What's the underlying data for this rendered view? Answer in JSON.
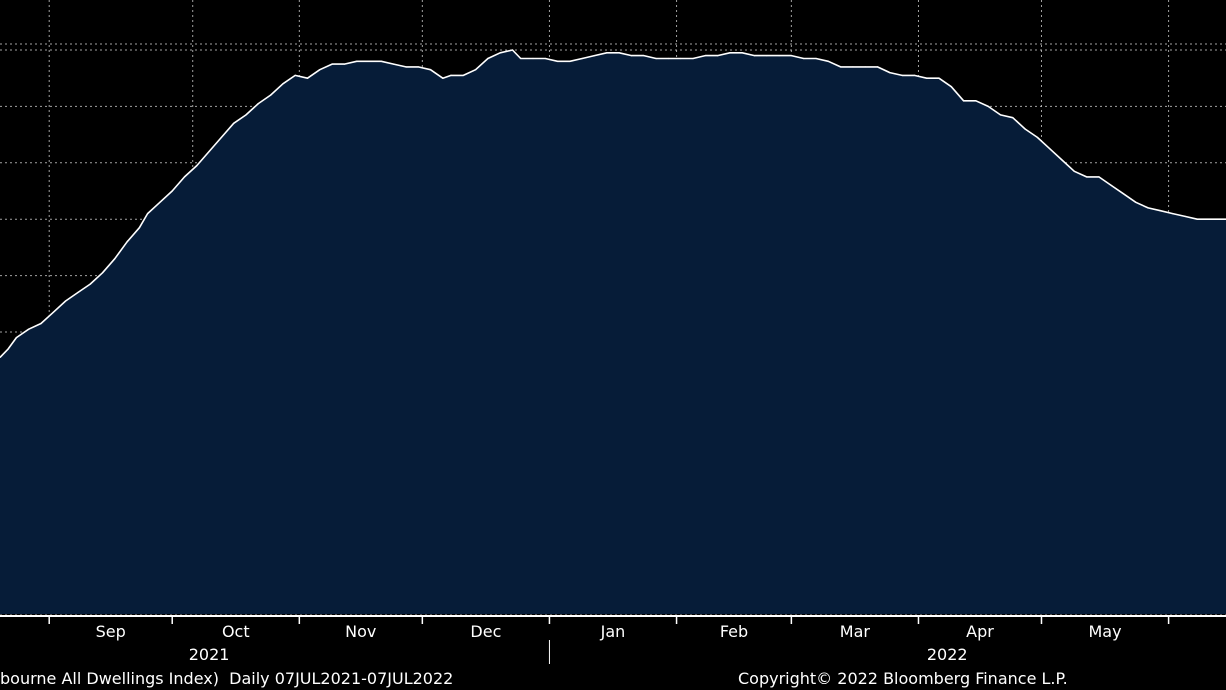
{
  "colors": {
    "background": "#000000",
    "area_fill": "#061c38",
    "line": "#ffffff",
    "grid": "#bfbfbf",
    "axis_text": "#ffffff"
  },
  "footer": {
    "left_text": "bourne All Dwellings Index)  Daily 07JUL2021-07JUL2022",
    "right_text": "Copyright© 2022 Bloomberg Finance L.P."
  },
  "chart_data": {
    "type": "area",
    "title": "",
    "xlabel": "",
    "ylabel": "",
    "grid": true,
    "y_tick_labels_shown": false,
    "year_labels": [
      "2021",
      "2022"
    ],
    "month_labels": [
      "Sep",
      "Oct",
      "Nov",
      "Dec",
      "Jan",
      "Feb",
      "Mar",
      "Apr",
      "May"
    ],
    "x_range": [
      "2021-08-20",
      "2022-06-15"
    ],
    "x_boundaries": [
      "2021-09-01",
      "2021-10-01",
      "2021-11-01",
      "2021-12-01",
      "2022-01-01",
      "2022-02-01",
      "2022-03-01",
      "2022-04-01",
      "2022-05-01",
      "2022-06-01"
    ],
    "x_grid": [
      "2021-09-01",
      "2021-10-06",
      "2021-11-01",
      "2021-12-01",
      "2022-01-01",
      "2022-02-01",
      "2022-03-01",
      "2022-04-01",
      "2022-05-01",
      "2022-06-01"
    ],
    "y_range": [
      0,
      100
    ],
    "y_grid": [
      0,
      10,
      20,
      30,
      40,
      50,
      60,
      70,
      80,
      90,
      100
    ],
    "series": [
      {
        "values": [
          [
            "2021-08-20",
            45.5
          ],
          [
            "2021-08-22",
            47.0
          ],
          [
            "2021-08-24",
            49.0
          ],
          [
            "2021-08-27",
            50.5
          ],
          [
            "2021-08-30",
            51.5
          ],
          [
            "2021-09-02",
            53.5
          ],
          [
            "2021-09-05",
            55.5
          ],
          [
            "2021-09-08",
            57.0
          ],
          [
            "2021-09-11",
            58.5
          ],
          [
            "2021-09-14",
            60.5
          ],
          [
            "2021-09-17",
            63.0
          ],
          [
            "2021-09-20",
            66.0
          ],
          [
            "2021-09-23",
            68.5
          ],
          [
            "2021-09-25",
            71.0
          ],
          [
            "2021-09-28",
            73.0
          ],
          [
            "2021-10-01",
            75.0
          ],
          [
            "2021-10-04",
            77.5
          ],
          [
            "2021-10-07",
            79.5
          ],
          [
            "2021-10-10",
            82.0
          ],
          [
            "2021-10-13",
            84.5
          ],
          [
            "2021-10-16",
            87.0
          ],
          [
            "2021-10-19",
            88.5
          ],
          [
            "2021-10-22",
            90.5
          ],
          [
            "2021-10-25",
            92.0
          ],
          [
            "2021-10-28",
            94.0
          ],
          [
            "2021-10-31",
            95.5
          ],
          [
            "2021-11-03",
            95.0
          ],
          [
            "2021-11-06",
            96.5
          ],
          [
            "2021-11-09",
            97.5
          ],
          [
            "2021-11-12",
            97.5
          ],
          [
            "2021-11-15",
            98.0
          ],
          [
            "2021-11-18",
            98.0
          ],
          [
            "2021-11-21",
            98.0
          ],
          [
            "2021-11-24",
            97.5
          ],
          [
            "2021-11-27",
            97.0
          ],
          [
            "2021-11-30",
            97.0
          ],
          [
            "2021-12-03",
            96.5
          ],
          [
            "2021-12-06",
            95.0
          ],
          [
            "2021-12-08",
            95.5
          ],
          [
            "2021-12-11",
            95.5
          ],
          [
            "2021-12-14",
            96.5
          ],
          [
            "2021-12-17",
            98.5
          ],
          [
            "2021-12-20",
            99.5
          ],
          [
            "2021-12-23",
            100.0
          ],
          [
            "2021-12-25",
            98.5
          ],
          [
            "2021-12-28",
            98.5
          ],
          [
            "2021-12-31",
            98.5
          ],
          [
            "2022-01-03",
            98.0
          ],
          [
            "2022-01-06",
            98.0
          ],
          [
            "2022-01-09",
            98.5
          ],
          [
            "2022-01-12",
            99.0
          ],
          [
            "2022-01-15",
            99.5
          ],
          [
            "2022-01-18",
            99.5
          ],
          [
            "2022-01-21",
            99.0
          ],
          [
            "2022-01-24",
            99.0
          ],
          [
            "2022-01-27",
            98.5
          ],
          [
            "2022-01-30",
            98.5
          ],
          [
            "2022-02-02",
            98.5
          ],
          [
            "2022-02-05",
            98.5
          ],
          [
            "2022-02-08",
            99.0
          ],
          [
            "2022-02-11",
            99.0
          ],
          [
            "2022-02-14",
            99.5
          ],
          [
            "2022-02-17",
            99.5
          ],
          [
            "2022-02-20",
            99.0
          ],
          [
            "2022-02-23",
            99.0
          ],
          [
            "2022-02-26",
            99.0
          ],
          [
            "2022-03-01",
            99.0
          ],
          [
            "2022-03-04",
            98.5
          ],
          [
            "2022-03-07",
            98.5
          ],
          [
            "2022-03-10",
            98.0
          ],
          [
            "2022-03-13",
            97.0
          ],
          [
            "2022-03-16",
            97.0
          ],
          [
            "2022-03-19",
            97.0
          ],
          [
            "2022-03-22",
            97.0
          ],
          [
            "2022-03-25",
            96.0
          ],
          [
            "2022-03-28",
            95.5
          ],
          [
            "2022-03-31",
            95.5
          ],
          [
            "2022-04-03",
            95.0
          ],
          [
            "2022-04-06",
            95.0
          ],
          [
            "2022-04-09",
            93.5
          ],
          [
            "2022-04-12",
            91.0
          ],
          [
            "2022-04-15",
            91.0
          ],
          [
            "2022-04-18",
            90.0
          ],
          [
            "2022-04-21",
            88.5
          ],
          [
            "2022-04-24",
            88.0
          ],
          [
            "2022-04-27",
            86.0
          ],
          [
            "2022-04-30",
            84.5
          ],
          [
            "2022-05-03",
            82.5
          ],
          [
            "2022-05-06",
            80.5
          ],
          [
            "2022-05-09",
            78.5
          ],
          [
            "2022-05-12",
            77.5
          ],
          [
            "2022-05-15",
            77.5
          ],
          [
            "2022-05-18",
            76.0
          ],
          [
            "2022-05-21",
            74.5
          ],
          [
            "2022-05-24",
            73.0
          ],
          [
            "2022-05-27",
            72.0
          ],
          [
            "2022-05-30",
            71.5
          ],
          [
            "2022-06-02",
            71.0
          ],
          [
            "2022-06-05",
            70.5
          ],
          [
            "2022-06-08",
            70.0
          ],
          [
            "2022-06-11",
            70.0
          ],
          [
            "2022-06-15",
            70.0
          ]
        ]
      }
    ]
  }
}
